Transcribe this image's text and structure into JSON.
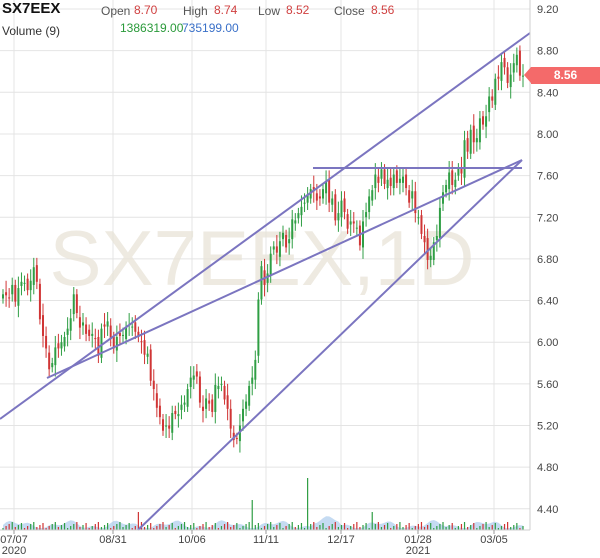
{
  "header": {
    "symbol": "SX7EEX",
    "open_label": "Open",
    "open_value": "8.70",
    "high_label": "High",
    "high_value": "8.74",
    "low_label": "Low",
    "low_value": "8.52",
    "close_label": "Close",
    "close_value": "8.56",
    "volume_label": "Volume (9)",
    "volume_value": "1386319.00",
    "volume_ma_value": "735199.00"
  },
  "watermark": "SX7EEX,1D",
  "last_price": "8.56",
  "colors": {
    "up": "#2f9e44",
    "down": "#d03535",
    "trend": "#7b75c0",
    "volume": "#9ec3ea",
    "grid": "#e4e4e4",
    "price_tag": "#f46a6a"
  },
  "chart_data": {
    "type": "candlestick",
    "title": "",
    "y_axis": {
      "ticks": [
        "4.40",
        "4.80",
        "5.20",
        "5.60",
        "6.00",
        "6.40",
        "6.80",
        "7.20",
        "7.60",
        "8.00",
        "8.40",
        "8.80",
        "9.20"
      ],
      "range": [
        4.25,
        9.3
      ],
      "position": "right"
    },
    "x_axis": {
      "ticks": [
        "07/07\n2020",
        "08/31",
        "10/06",
        "11/11",
        "12/17",
        "01/28\n2021",
        "03/05"
      ]
    },
    "closes": [
      6.46,
      6.45,
      6.42,
      6.55,
      6.39,
      6.52,
      6.58,
      6.57,
      6.5,
      6.59,
      6.72,
      6.58,
      6.22,
      6.06,
      5.94,
      5.74,
      5.8,
      5.95,
      5.94,
      6.0,
      6.05,
      6.13,
      6.23,
      6.46,
      6.28,
      6.14,
      6.19,
      6.08,
      6.06,
      6.08,
      6.03,
      5.87,
      6.13,
      6.15,
      6.2,
      6.03,
      5.94,
      6.05,
      6.06,
      6.07,
      6.15,
      6.17,
      6.15,
      6.1,
      6.05,
      6.0,
      5.88,
      5.89,
      5.63,
      5.55,
      5.37,
      5.28,
      5.15,
      5.2,
      5.17,
      5.32,
      5.31,
      5.31,
      5.4,
      5.42,
      5.55,
      5.66,
      5.68,
      5.67,
      5.42,
      5.34,
      5.46,
      5.41,
      5.33,
      5.59,
      5.58,
      5.6,
      5.45,
      5.36,
      5.17,
      5.06,
      5.07,
      5.2,
      5.36,
      5.43,
      5.58,
      5.66,
      5.83,
      6.41,
      6.73,
      6.55,
      6.66,
      6.85,
      6.92,
      6.86,
      6.97,
      7.05,
      6.91,
      6.99,
      7.18,
      7.17,
      7.24,
      7.3,
      7.34,
      7.42,
      7.47,
      7.45,
      7.36,
      7.38,
      7.47,
      7.54,
      7.34,
      7.38,
      7.17,
      7.24,
      7.36,
      7.25,
      7.09,
      7.16,
      7.14,
      7.1,
      6.93,
      7.16,
      7.25,
      7.4,
      7.46,
      7.61,
      7.53,
      7.66,
      7.52,
      7.56,
      7.5,
      7.61,
      7.53,
      7.57,
      7.59,
      7.48,
      7.34,
      7.45,
      7.24,
      7.2,
      7.04,
      6.96,
      6.79,
      6.83,
      6.96,
      7.02,
      7.29,
      7.44,
      7.51,
      7.63,
      7.51,
      7.56,
      7.67,
      7.62,
      7.94,
      7.83,
      8.04,
      7.92,
      7.96,
      8.15,
      8.09,
      8.17,
      8.36,
      8.32,
      8.53,
      8.53,
      8.69,
      8.64,
      8.49,
      8.57,
      8.68,
      8.76,
      8.56,
      8.56
    ],
    "volume": {
      "name": "Volume (9)"
    }
  }
}
